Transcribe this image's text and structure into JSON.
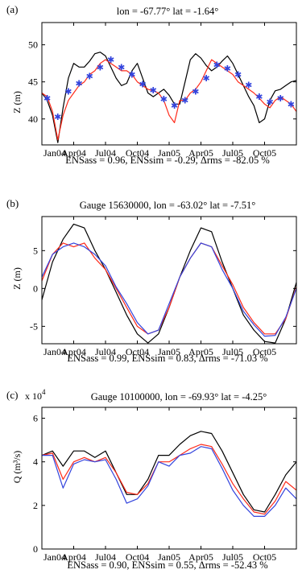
{
  "colors": {
    "observed": "#000000",
    "assimilated": "#ff2a1a",
    "simulated": "#3344dd",
    "stars": "#3344dd"
  },
  "chart_data": [
    {
      "type": "line",
      "panel_label": "(a)",
      "title": "lon = -67.77° lat = -1.64°",
      "ylabel": "Z (m)",
      "xlabel": "",
      "caption": "ENSass = 0.96, ENSsim = -0.29, Δrms = -82.05 %",
      "xlim": [
        0,
        24
      ],
      "ylim": [
        36.5,
        53
      ],
      "yticks": [
        40,
        45,
        50
      ],
      "xticklabels": [
        "Jan04",
        "Apr04",
        "Jul04",
        "Oct04",
        "Jan05",
        "Apr05",
        "Jul05",
        "Oct05"
      ],
      "xticks": [
        0,
        3,
        6,
        9,
        12,
        15,
        18,
        21
      ],
      "series": [
        {
          "key": "observed",
          "x": [
            0,
            0.5,
            1,
            1.5,
            2,
            2.5,
            3,
            3.5,
            4,
            4.5,
            5,
            5.5,
            6,
            6.5,
            7,
            7.5,
            8,
            8.5,
            9,
            9.5,
            10,
            10.5,
            11,
            11.5,
            12,
            12.5,
            13,
            13.5,
            14,
            14.5,
            15,
            15.5,
            16,
            16.5,
            17,
            17.5,
            18,
            18.5,
            19,
            19.5,
            20,
            20.5,
            21,
            21.5,
            22,
            22.5,
            23,
            23.5,
            24
          ],
          "y": [
            43.5,
            42.5,
            40.5,
            36.8,
            41.5,
            45.5,
            47.5,
            47.0,
            47.0,
            47.8,
            48.8,
            49.0,
            48.5,
            47.0,
            45.5,
            44.5,
            44.8,
            46.5,
            47.5,
            45.5,
            43.5,
            43.0,
            43.5,
            44.0,
            43.2,
            42.0,
            42.0,
            45.0,
            48.0,
            48.8,
            48.2,
            47.2,
            46.5,
            47.0,
            47.8,
            48.5,
            47.5,
            46.0,
            44.5,
            43.0,
            41.8,
            39.5,
            40.0,
            42.5,
            43.8,
            44.0,
            44.5,
            45.0,
            45.2
          ]
        },
        {
          "key": "assimilated",
          "x": [
            0,
            0.5,
            1,
            1.5,
            2,
            2.5,
            3,
            3.5,
            4,
            4.5,
            5,
            5.5,
            6,
            6.5,
            7,
            7.5,
            8,
            8.5,
            9,
            9.5,
            10,
            10.5,
            11,
            11.5,
            12,
            12.5,
            13,
            13.5,
            14,
            14.5,
            15,
            15.5,
            16,
            16.5,
            17,
            17.5,
            18,
            18.5,
            19,
            19.5,
            20,
            20.5,
            21,
            21.5,
            22,
            22.5,
            23,
            23.5,
            24
          ],
          "y": [
            43.5,
            43.0,
            41.0,
            37.2,
            40.5,
            42.5,
            43.5,
            44.5,
            45.0,
            46.0,
            46.5,
            47.5,
            48.0,
            47.5,
            47.0,
            46.5,
            46.5,
            46.0,
            45.0,
            44.5,
            44.0,
            43.8,
            43.5,
            42.5,
            40.5,
            39.5,
            42.5,
            42.5,
            43.5,
            44.0,
            45.0,
            46.5,
            48.0,
            47.5,
            47.0,
            46.5,
            46.0,
            45.0,
            44.5,
            44.0,
            43.5,
            42.8,
            42.0,
            41.5,
            42.5,
            43.0,
            42.5,
            42.0,
            41.0
          ]
        }
      ],
      "markers": {
        "key": "stars",
        "x": [
          0.5,
          1.5,
          2.5,
          3.5,
          4.5,
          5.5,
          6.5,
          7.5,
          8.5,
          9.5,
          10.5,
          11.5,
          12.5,
          13.5,
          14.5,
          15.5,
          16.5,
          17.5,
          18.5,
          19.5,
          20.5,
          21.5,
          22.5,
          23.5
        ],
        "y": [
          42.8,
          40.3,
          43.7,
          44.8,
          45.8,
          47.0,
          48.0,
          47.0,
          46.0,
          44.7,
          43.9,
          42.7,
          41.8,
          42.5,
          43.7,
          45.5,
          47.3,
          46.8,
          46.0,
          44.6,
          43.0,
          42.3,
          42.8,
          42.0
        ]
      }
    },
    {
      "type": "line",
      "panel_label": "(b)",
      "title": "Gauge 15630000, lon = -63.02° lat = -7.51°",
      "ylabel": "Z (m)",
      "xlabel": "",
      "caption": "ENSass = 0.99, ENSsim = 0.83, Δrms = -71.03 %",
      "xlim": [
        0,
        24
      ],
      "ylim": [
        -7.3,
        9.5
      ],
      "yticks": [
        -5,
        0,
        5
      ],
      "xticklabels": [
        "Jan04",
        "Apr04",
        "Jul04",
        "Oct04",
        "Jan05",
        "Apr05",
        "Jul05",
        "Oct05"
      ],
      "xticks": [
        0,
        3,
        6,
        9,
        12,
        15,
        18,
        21
      ],
      "series": [
        {
          "key": "observed",
          "x": [
            0,
            1,
            2,
            3,
            4,
            5,
            6,
            7,
            8,
            9,
            10,
            11,
            12,
            13,
            14,
            15,
            16,
            17,
            18,
            19,
            20,
            21,
            22,
            23,
            24
          ],
          "y": [
            -1.5,
            3.5,
            6.5,
            8.5,
            8.0,
            5.0,
            2.5,
            -0.5,
            -3.5,
            -6.0,
            -7.2,
            -6.0,
            -2.5,
            1.5,
            5.0,
            8.0,
            7.5,
            3.5,
            0.0,
            -3.5,
            -5.5,
            -7.0,
            -7.2,
            -4.0,
            0.8
          ]
        },
        {
          "key": "assimilated",
          "x": [
            0,
            1,
            2,
            3,
            4,
            5,
            6,
            7,
            8,
            9,
            10,
            11,
            12,
            13,
            14,
            15,
            16,
            17,
            18,
            19,
            20,
            21,
            22,
            23,
            24
          ],
          "y": [
            1.0,
            4.5,
            6.0,
            5.5,
            6.0,
            4.0,
            2.5,
            0.0,
            -2.5,
            -5.0,
            -6.0,
            -5.5,
            -2.5,
            1.5,
            4.0,
            6.0,
            5.5,
            3.0,
            0.5,
            -2.5,
            -4.5,
            -6.0,
            -6.0,
            -4.0,
            0.2
          ]
        },
        {
          "key": "simulated",
          "x": [
            0,
            1,
            2,
            3,
            4,
            5,
            6,
            7,
            8,
            9,
            10,
            11,
            12,
            13,
            14,
            15,
            16,
            17,
            18,
            19,
            20,
            21,
            22,
            23,
            24
          ],
          "y": [
            1.5,
            4.5,
            5.5,
            6.0,
            5.5,
            4.5,
            3.0,
            0.2,
            -2.0,
            -4.5,
            -6.0,
            -5.5,
            -2.0,
            1.5,
            4.0,
            6.0,
            5.5,
            2.5,
            0.0,
            -3.0,
            -4.8,
            -6.3,
            -6.2,
            -3.8,
            0.0
          ]
        }
      ]
    },
    {
      "type": "line",
      "panel_label": "(c)",
      "title": "Gauge 10100000, lon = -69.93° lat = -4.25°",
      "multiplier": "x 10",
      "multiplier_exp": "4",
      "ylabel": "Q (m³/s)",
      "xlabel": "",
      "caption": "ENSass = 0.90, ENSsim = 0.55, Δrms = -52.43 %",
      "xlim": [
        0,
        24
      ],
      "ylim": [
        0,
        6.5
      ],
      "yticks": [
        0,
        2,
        4,
        6
      ],
      "xticklabels": [
        "Jan04",
        "Apr04",
        "Jul04",
        "Oct04",
        "Jan05",
        "Apr05",
        "Jul05",
        "Oct05"
      ],
      "xticks": [
        0,
        3,
        6,
        9,
        12,
        15,
        18,
        21
      ],
      "series": [
        {
          "key": "observed",
          "x": [
            0,
            1,
            2,
            3,
            4,
            5,
            6,
            7,
            8,
            9,
            10,
            11,
            12,
            13,
            14,
            15,
            16,
            17,
            18,
            19,
            20,
            21,
            22,
            23,
            24
          ],
          "y": [
            4.3,
            4.5,
            3.8,
            4.5,
            4.5,
            4.2,
            4.5,
            3.5,
            2.5,
            2.5,
            3.2,
            4.3,
            4.3,
            4.8,
            5.2,
            5.4,
            5.3,
            4.5,
            3.5,
            2.5,
            1.8,
            1.7,
            2.5,
            3.4,
            4.0
          ]
        },
        {
          "key": "assimilated",
          "x": [
            0,
            1,
            2,
            3,
            4,
            5,
            6,
            7,
            8,
            9,
            10,
            11,
            12,
            13,
            14,
            15,
            16,
            17,
            18,
            19,
            20,
            21,
            22,
            23,
            24
          ],
          "y": [
            4.3,
            4.4,
            3.2,
            4.0,
            4.2,
            4.0,
            4.2,
            3.5,
            2.6,
            2.5,
            3.0,
            4.0,
            4.0,
            4.3,
            4.6,
            4.8,
            4.7,
            3.9,
            3.0,
            2.3,
            1.7,
            1.6,
            2.2,
            3.1,
            2.7
          ]
        },
        {
          "key": "simulated",
          "x": [
            0,
            1,
            2,
            3,
            4,
            5,
            6,
            7,
            8,
            9,
            10,
            11,
            12,
            13,
            14,
            15,
            16,
            17,
            18,
            19,
            20,
            21,
            22,
            23,
            24
          ],
          "y": [
            4.3,
            4.3,
            2.8,
            3.9,
            4.1,
            4.0,
            4.1,
            3.2,
            2.1,
            2.3,
            2.9,
            4.0,
            3.8,
            4.3,
            4.4,
            4.7,
            4.6,
            3.7,
            2.7,
            2.0,
            1.5,
            1.5,
            2.0,
            2.8,
            2.3
          ]
        }
      ]
    }
  ]
}
